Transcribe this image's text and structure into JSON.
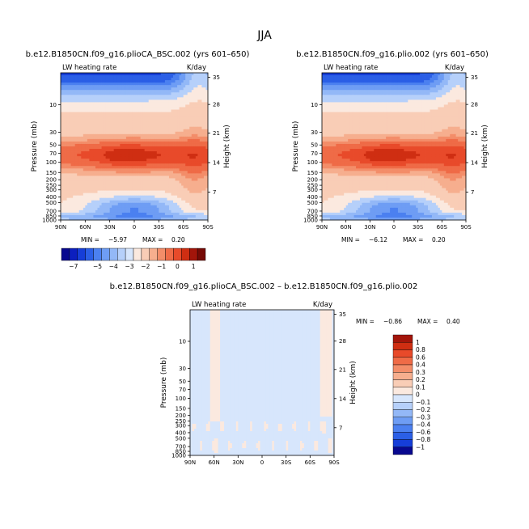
{
  "page": {
    "season": "JJA"
  },
  "colors": {
    "blues": [
      "#08088f",
      "#0c1fbf",
      "#163ed8",
      "#2b5fe6",
      "#4b80f0",
      "#6e9df4",
      "#93b8f7",
      "#b6d0fa",
      "#d7e6fc"
    ],
    "reds": [
      "#fbe9df",
      "#f9cdb6",
      "#f6ae8e",
      "#f38d69",
      "#ef6b47",
      "#e84a2a",
      "#cf2e12",
      "#a3150a",
      "#760a05"
    ],
    "neutral": "#ffffff"
  },
  "chart_data": [
    {
      "type": "contour",
      "id": "left",
      "title": "b.e12.B1850CN.f09_g16.plioCA_BSC.002 (yrs 601–650)",
      "variable": "LW heating rate",
      "units": "K/day",
      "ylabel": "Pressure (mb)",
      "ylabel_right": "Height (km)",
      "xticks": [
        "90N",
        "60N",
        "30N",
        "0",
        "30S",
        "60S",
        "90S"
      ],
      "yticks": [
        "10",
        "30",
        "50",
        "70",
        "100",
        "150",
        "200",
        "250",
        "300",
        "400",
        "500",
        "700",
        "850",
        "1000"
      ],
      "height_ticks": [
        "35",
        "28",
        "21",
        "14",
        "7"
      ],
      "min_label": "MIN =",
      "min": "−5.97",
      "max_label": "MAX =",
      "max": "0.20"
    },
    {
      "type": "contour",
      "id": "right",
      "title": "b.e12.B1850CN.f09_g16.plio.002 (yrs 601–650)",
      "variable": "LW heating rate",
      "units": "K/day",
      "ylabel": "Pressure (mb)",
      "ylabel_right": "Height (km)",
      "xticks": [
        "90N",
        "60N",
        "30N",
        "0",
        "30S",
        "60S",
        "90S"
      ],
      "yticks": [
        "10",
        "30",
        "50",
        "70",
        "100",
        "150",
        "200",
        "250",
        "300",
        "400",
        "500",
        "700",
        "850",
        "1000"
      ],
      "height_ticks": [
        "35",
        "28",
        "21",
        "14",
        "7"
      ],
      "min_label": "MIN =",
      "min": "−6.12",
      "max_label": "MAX =",
      "max": "0.20"
    },
    {
      "type": "contour",
      "id": "diff",
      "title": "b.e12.B1850CN.f09_g16.plioCA_BSC.002 – b.e12.B1850CN.f09_g16.plio.002",
      "variable": "LW heating rate",
      "units": "K/day",
      "ylabel": "Pressure (mb)",
      "ylabel_right": "Height (km)",
      "xticks": [
        "90N",
        "60N",
        "30N",
        "0",
        "30S",
        "60S",
        "90S"
      ],
      "yticks": [
        "10",
        "30",
        "50",
        "70",
        "100",
        "150",
        "200",
        "250",
        "300",
        "400",
        "500",
        "700",
        "850",
        "1000"
      ],
      "height_ticks": [
        "35",
        "28",
        "21",
        "14",
        "7"
      ],
      "min_label": "MIN =",
      "min": "−0.86",
      "max_label": "MAX =",
      "max": "0.40"
    }
  ],
  "colorbar_top": {
    "labels": [
      "−7",
      "−5",
      "−4",
      "−3",
      "−2",
      "−1",
      "0",
      "1"
    ]
  },
  "colorbar_diff": {
    "labels": [
      "1",
      "0.8",
      "0.6",
      "0.4",
      "0.3",
      "0.2",
      "0.1",
      "0",
      "−0.1",
      "−0.2",
      "−0.3",
      "−0.4",
      "−0.6",
      "−0.8",
      "−1"
    ]
  }
}
